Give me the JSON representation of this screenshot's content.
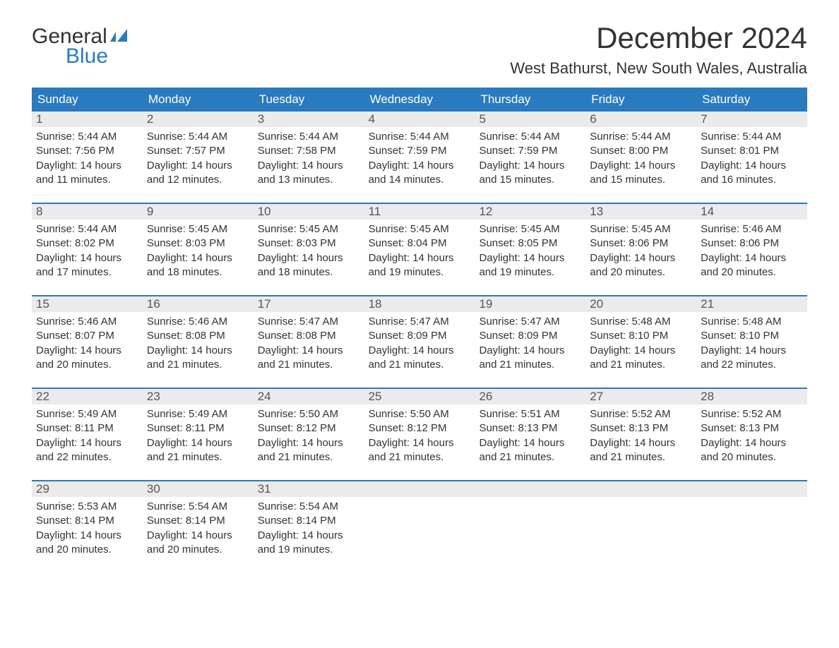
{
  "logo": {
    "word1": "General",
    "word2": "Blue"
  },
  "title": "December 2024",
  "location": "West Bathurst, New South Wales, Australia",
  "colors": {
    "header_bg": "#2a7ac0",
    "header_text": "#ffffff",
    "row_divider": "#2a7ac0",
    "date_bg": "#ebebeb",
    "body_text": "#333333",
    "logo_accent": "#2a7ac0"
  },
  "day_names": [
    "Sunday",
    "Monday",
    "Tuesday",
    "Wednesday",
    "Thursday",
    "Friday",
    "Saturday"
  ],
  "weeks": [
    [
      {
        "date": "1",
        "sunrise": "5:44 AM",
        "sunset": "7:56 PM",
        "daylight": "14 hours and 11 minutes."
      },
      {
        "date": "2",
        "sunrise": "5:44 AM",
        "sunset": "7:57 PM",
        "daylight": "14 hours and 12 minutes."
      },
      {
        "date": "3",
        "sunrise": "5:44 AM",
        "sunset": "7:58 PM",
        "daylight": "14 hours and 13 minutes."
      },
      {
        "date": "4",
        "sunrise": "5:44 AM",
        "sunset": "7:59 PM",
        "daylight": "14 hours and 14 minutes."
      },
      {
        "date": "5",
        "sunrise": "5:44 AM",
        "sunset": "7:59 PM",
        "daylight": "14 hours and 15 minutes."
      },
      {
        "date": "6",
        "sunrise": "5:44 AM",
        "sunset": "8:00 PM",
        "daylight": "14 hours and 15 minutes."
      },
      {
        "date": "7",
        "sunrise": "5:44 AM",
        "sunset": "8:01 PM",
        "daylight": "14 hours and 16 minutes."
      }
    ],
    [
      {
        "date": "8",
        "sunrise": "5:44 AM",
        "sunset": "8:02 PM",
        "daylight": "14 hours and 17 minutes."
      },
      {
        "date": "9",
        "sunrise": "5:45 AM",
        "sunset": "8:03 PM",
        "daylight": "14 hours and 18 minutes."
      },
      {
        "date": "10",
        "sunrise": "5:45 AM",
        "sunset": "8:03 PM",
        "daylight": "14 hours and 18 minutes."
      },
      {
        "date": "11",
        "sunrise": "5:45 AM",
        "sunset": "8:04 PM",
        "daylight": "14 hours and 19 minutes."
      },
      {
        "date": "12",
        "sunrise": "5:45 AM",
        "sunset": "8:05 PM",
        "daylight": "14 hours and 19 minutes."
      },
      {
        "date": "13",
        "sunrise": "5:45 AM",
        "sunset": "8:06 PM",
        "daylight": "14 hours and 20 minutes."
      },
      {
        "date": "14",
        "sunrise": "5:46 AM",
        "sunset": "8:06 PM",
        "daylight": "14 hours and 20 minutes."
      }
    ],
    [
      {
        "date": "15",
        "sunrise": "5:46 AM",
        "sunset": "8:07 PM",
        "daylight": "14 hours and 20 minutes."
      },
      {
        "date": "16",
        "sunrise": "5:46 AM",
        "sunset": "8:08 PM",
        "daylight": "14 hours and 21 minutes."
      },
      {
        "date": "17",
        "sunrise": "5:47 AM",
        "sunset": "8:08 PM",
        "daylight": "14 hours and 21 minutes."
      },
      {
        "date": "18",
        "sunrise": "5:47 AM",
        "sunset": "8:09 PM",
        "daylight": "14 hours and 21 minutes."
      },
      {
        "date": "19",
        "sunrise": "5:47 AM",
        "sunset": "8:09 PM",
        "daylight": "14 hours and 21 minutes."
      },
      {
        "date": "20",
        "sunrise": "5:48 AM",
        "sunset": "8:10 PM",
        "daylight": "14 hours and 21 minutes."
      },
      {
        "date": "21",
        "sunrise": "5:48 AM",
        "sunset": "8:10 PM",
        "daylight": "14 hours and 22 minutes."
      }
    ],
    [
      {
        "date": "22",
        "sunrise": "5:49 AM",
        "sunset": "8:11 PM",
        "daylight": "14 hours and 22 minutes."
      },
      {
        "date": "23",
        "sunrise": "5:49 AM",
        "sunset": "8:11 PM",
        "daylight": "14 hours and 21 minutes."
      },
      {
        "date": "24",
        "sunrise": "5:50 AM",
        "sunset": "8:12 PM",
        "daylight": "14 hours and 21 minutes."
      },
      {
        "date": "25",
        "sunrise": "5:50 AM",
        "sunset": "8:12 PM",
        "daylight": "14 hours and 21 minutes."
      },
      {
        "date": "26",
        "sunrise": "5:51 AM",
        "sunset": "8:13 PM",
        "daylight": "14 hours and 21 minutes."
      },
      {
        "date": "27",
        "sunrise": "5:52 AM",
        "sunset": "8:13 PM",
        "daylight": "14 hours and 21 minutes."
      },
      {
        "date": "28",
        "sunrise": "5:52 AM",
        "sunset": "8:13 PM",
        "daylight": "14 hours and 20 minutes."
      }
    ],
    [
      {
        "date": "29",
        "sunrise": "5:53 AM",
        "sunset": "8:14 PM",
        "daylight": "14 hours and 20 minutes."
      },
      {
        "date": "30",
        "sunrise": "5:54 AM",
        "sunset": "8:14 PM",
        "daylight": "14 hours and 20 minutes."
      },
      {
        "date": "31",
        "sunrise": "5:54 AM",
        "sunset": "8:14 PM",
        "daylight": "14 hours and 19 minutes."
      },
      null,
      null,
      null,
      null
    ]
  ],
  "labels": {
    "sunrise": "Sunrise:",
    "sunset": "Sunset:",
    "daylight": "Daylight:"
  }
}
